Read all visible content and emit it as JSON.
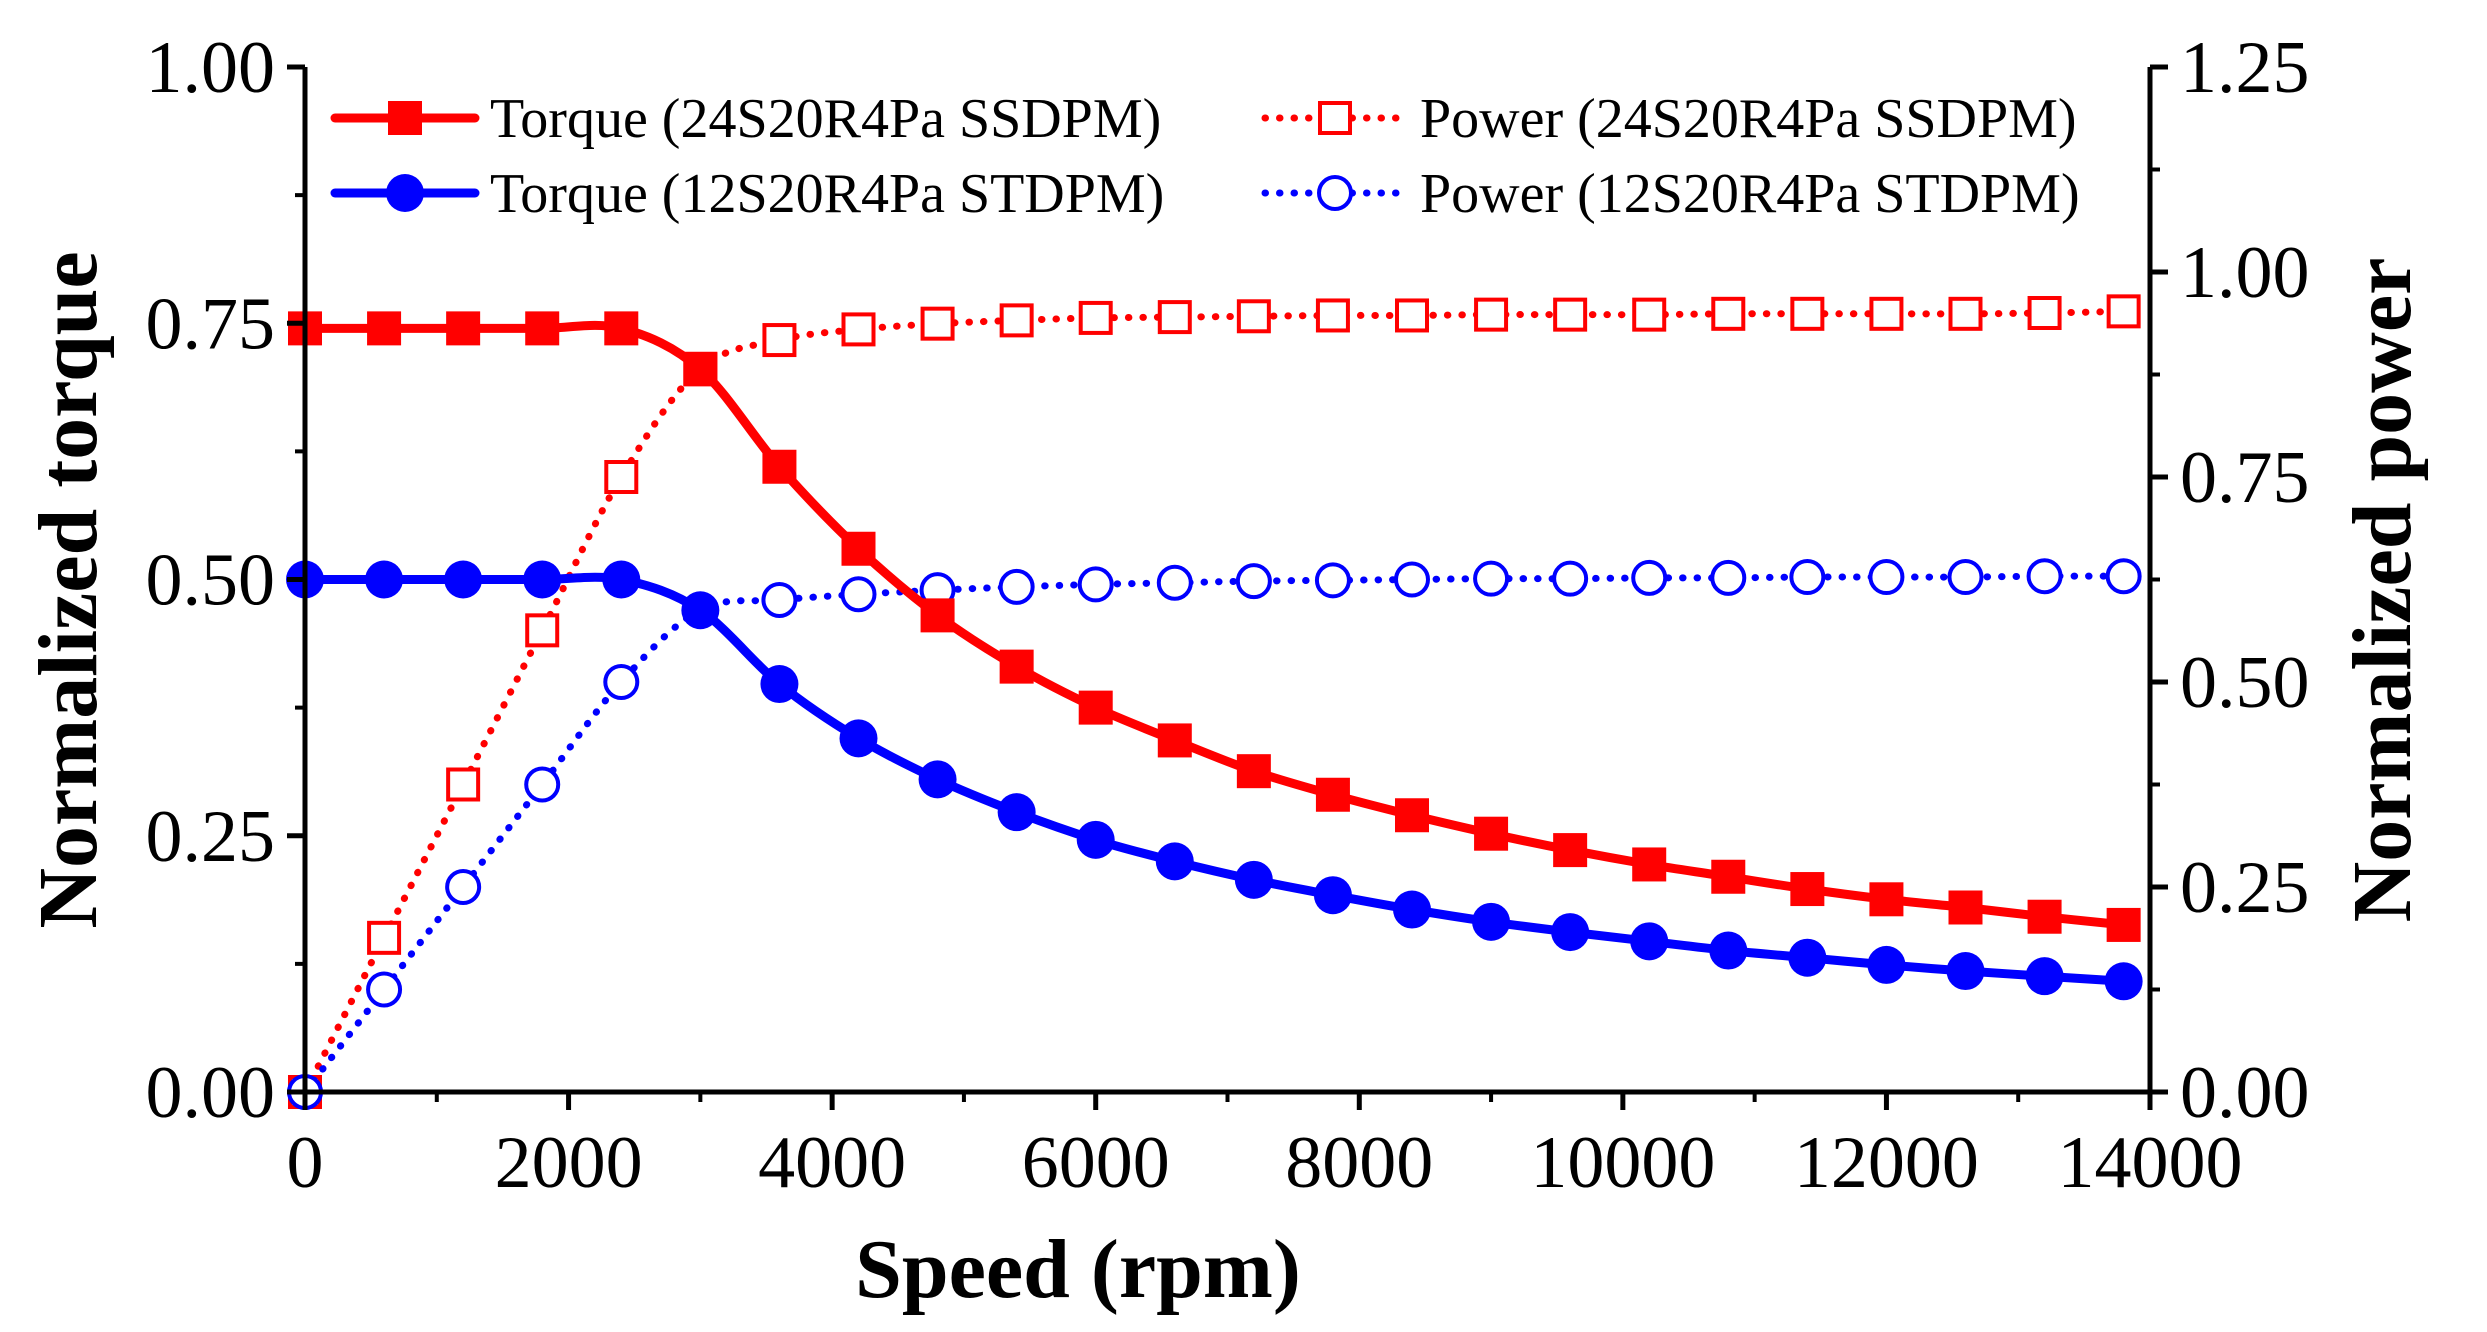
{
  "chart_data": {
    "type": "line",
    "title": "",
    "xlabel": "Speed (rpm)",
    "ylabel_left": "Normalized torque",
    "ylabel_right": "Normalized power",
    "xlim": [
      0,
      14000
    ],
    "ylim_left": [
      0,
      1.0
    ],
    "ylim_right": [
      0,
      1.25
    ],
    "xticks": [
      "0",
      "2000",
      "4000",
      "6000",
      "8000",
      "10000",
      "12000",
      "14000"
    ],
    "yticks_left": [
      "0.00",
      "0.25",
      "0.50",
      "0.75",
      "1.00"
    ],
    "yticks_right": [
      "0.00",
      "0.25",
      "0.50",
      "0.75",
      "1.00",
      "1.25"
    ],
    "grid": false,
    "legend_position": "top",
    "series": [
      {
        "name": "Torque (24S20R4Pa SSDPM)",
        "axis": "left",
        "color": "#ff0000",
        "style": "solid",
        "marker": "filled-square",
        "x": [
          0,
          600,
          1200,
          1800,
          2400,
          3000,
          3600,
          4200,
          4800,
          5400,
          6000,
          6600,
          7200,
          7800,
          8400,
          9000,
          9600,
          10200,
          10800,
          11400,
          12000,
          12600,
          13200,
          13800
        ],
        "values": [
          0.745,
          0.745,
          0.745,
          0.745,
          0.745,
          0.705,
          0.61,
          0.53,
          0.465,
          0.415,
          0.375,
          0.343,
          0.313,
          0.29,
          0.27,
          0.252,
          0.236,
          0.222,
          0.21,
          0.198,
          0.188,
          0.18,
          0.171,
          0.163
        ]
      },
      {
        "name": "Torque (12S20R4Pa STDPM)",
        "axis": "left",
        "color": "#0000ff",
        "style": "solid",
        "marker": "filled-circle",
        "x": [
          0,
          600,
          1200,
          1800,
          2400,
          3000,
          3600,
          4200,
          4800,
          5400,
          6000,
          6600,
          7200,
          7800,
          8400,
          9000,
          9600,
          10200,
          10800,
          11400,
          12000,
          12600,
          13200,
          13800
        ],
        "values": [
          0.5,
          0.5,
          0.5,
          0.5,
          0.5,
          0.47,
          0.398,
          0.345,
          0.305,
          0.273,
          0.246,
          0.225,
          0.207,
          0.192,
          0.178,
          0.166,
          0.156,
          0.147,
          0.138,
          0.131,
          0.124,
          0.118,
          0.113,
          0.108
        ]
      },
      {
        "name": "Power (24S20R4Pa SSDPM)",
        "axis": "right",
        "color": "#ff0000",
        "style": "dotted",
        "marker": "open-square",
        "x": [
          0,
          600,
          1200,
          1800,
          2400,
          3000,
          3600,
          4200,
          4800,
          5400,
          6000,
          6600,
          7200,
          7800,
          8400,
          9000,
          9600,
          10200,
          10800,
          11400,
          12000,
          12600,
          13200,
          13800
        ],
        "values": [
          0.0,
          0.188,
          0.375,
          0.563,
          0.75,
          0.882,
          0.917,
          0.93,
          0.937,
          0.941,
          0.944,
          0.945,
          0.946,
          0.947,
          0.947,
          0.948,
          0.948,
          0.948,
          0.949,
          0.949,
          0.949,
          0.949,
          0.95,
          0.952
        ]
      },
      {
        "name": "Power (12S20R4Pa STDPM)",
        "axis": "right",
        "color": "#0000ff",
        "style": "dotted",
        "marker": "open-circle",
        "x": [
          0,
          600,
          1200,
          1800,
          2400,
          3000,
          3600,
          4200,
          4800,
          5400,
          6000,
          6600,
          7200,
          7800,
          8400,
          9000,
          9600,
          10200,
          10800,
          11400,
          12000,
          12600,
          13200,
          13800
        ],
        "values": [
          0.0,
          0.125,
          0.25,
          0.375,
          0.5,
          0.588,
          0.6,
          0.607,
          0.612,
          0.616,
          0.619,
          0.621,
          0.623,
          0.624,
          0.625,
          0.626,
          0.626,
          0.627,
          0.627,
          0.628,
          0.628,
          0.628,
          0.629,
          0.629
        ]
      }
    ]
  }
}
